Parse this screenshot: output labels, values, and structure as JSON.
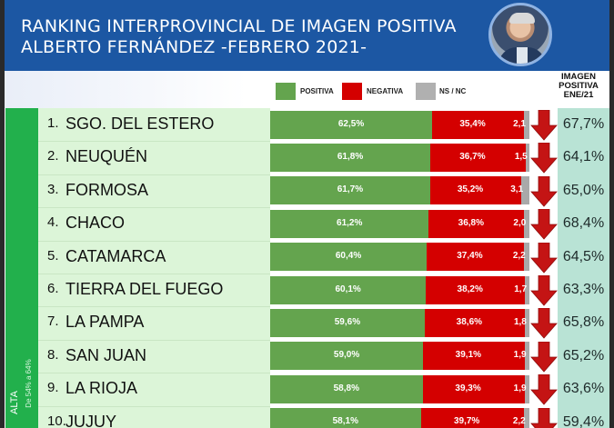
{
  "header": {
    "title_line1": "RANKING INTERPROVINCIAL DE IMAGEN POSITIVA",
    "title_line2": "ALBERTO FERNÁNDEZ  -FEBRERO 2021-",
    "avatar": "politician-portrait-photo"
  },
  "legend": {
    "positiva": "POSITIVA",
    "negativa": "NEGATIVA",
    "nsnc": "NS / NC"
  },
  "prev_column_header": [
    "IMAGEN",
    "POSITIVA",
    "ENE/21"
  ],
  "band": {
    "title": "ALTA",
    "subtitle": "De 54% a 64%"
  },
  "colors": {
    "header_bg": "#1c57a3",
    "positiva": "#64a44e",
    "negativa": "#d40000",
    "nsnc": "#a9a9a9",
    "band": "#22b04c",
    "names_bg": "#dcf5d8",
    "prev_bg": "#b9e3d5",
    "arrow": "#c41414"
  },
  "chart_data": {
    "type": "bar",
    "stacked": true,
    "orientation": "horizontal",
    "title": "RANKING INTERPROVINCIAL DE IMAGEN POSITIVA ALBERTO FERNÁNDEZ -FEBRERO 2021-",
    "categories": [
      "SGO. DEL ESTERO",
      "NEUQUÉN",
      "FORMOSA",
      "CHACO",
      "CATAMARCA",
      "TIERRA DEL FUEGO",
      "LA PAMPA",
      "SAN JUAN",
      "LA RIOJA",
      "JUJUY"
    ],
    "ranks": [
      "1.",
      "2.",
      "3.",
      "4.",
      "5.",
      "6.",
      "7.",
      "8.",
      "9.",
      "10."
    ],
    "series": [
      {
        "name": "POSITIVA",
        "values": [
          62.5,
          61.8,
          61.7,
          61.2,
          60.4,
          60.1,
          59.6,
          59.0,
          58.8,
          58.1
        ],
        "labels": [
          "62,5%",
          "61,8%",
          "61,7%",
          "61,2%",
          "60,4%",
          "60,1%",
          "59,6%",
          "59,0%",
          "58,8%",
          "58,1%"
        ]
      },
      {
        "name": "NEGATIVA",
        "values": [
          35.4,
          36.7,
          35.2,
          36.8,
          37.4,
          38.2,
          38.6,
          39.1,
          39.3,
          39.7
        ],
        "labels": [
          "35,4%",
          "36,7%",
          "35,2%",
          "36,8%",
          "37,4%",
          "38,2%",
          "38,6%",
          "39,1%",
          "39,3%",
          "39,7%"
        ]
      },
      {
        "name": "NS / NC",
        "values": [
          2.1,
          1.5,
          3.1,
          2.0,
          2.2,
          1.7,
          1.8,
          1.9,
          1.9,
          2.2
        ],
        "labels": [
          "2,1",
          "1,5",
          "3,1",
          "2,0",
          "2,2",
          "1,7",
          "1,8",
          "1,9",
          "1,9",
          "2,2"
        ]
      }
    ],
    "trend": [
      "down",
      "down",
      "down",
      "down",
      "down",
      "down",
      "down",
      "down",
      "down",
      "down"
    ],
    "previous_positive_ene21": {
      "values": [
        67.7,
        64.1,
        65.0,
        68.4,
        64.5,
        63.3,
        65.8,
        65.2,
        63.6,
        59.4
      ],
      "labels": [
        "67,7%",
        "64,1%",
        "65,0%",
        "68,4%",
        "64,5%",
        "63,3%",
        "65,8%",
        "65,2%",
        "63,6%",
        "59,4%"
      ]
    },
    "xlim": [
      0,
      100
    ],
    "legend_position": "top-right",
    "grid": false
  }
}
